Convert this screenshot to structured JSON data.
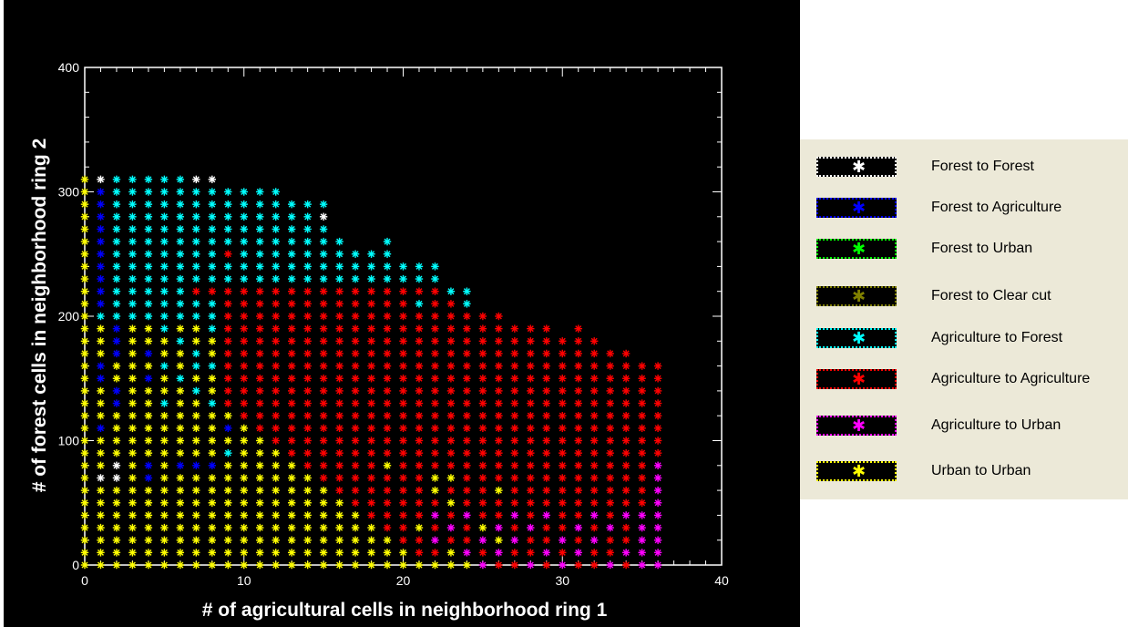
{
  "chart_data": {
    "type": "scatter",
    "xlabel": "# of agricultural cells in neighborhood ring 1",
    "ylabel": "# of forest cells in neighborhood ring 2",
    "xlim": [
      0,
      40
    ],
    "ylim": [
      0,
      400
    ],
    "xticks": [
      0,
      10,
      20,
      30,
      40
    ],
    "yticks": [
      0,
      100,
      200,
      300,
      400
    ],
    "grid": false,
    "legend_position": "right",
    "plot_background": "#000000",
    "marker": "asterisk",
    "series": [
      {
        "name": "Forest to Forest",
        "color": "#ffffff",
        "points": [
          [
            1,
            310
          ],
          [
            7,
            310
          ],
          [
            8,
            310
          ],
          [
            15,
            280
          ],
          [
            1,
            70
          ],
          [
            2,
            70
          ],
          [
            2,
            80
          ]
        ]
      },
      {
        "name": "Forest to Agriculture",
        "color": "#0000ff",
        "points": [
          [
            1,
            300
          ],
          [
            1,
            290
          ],
          [
            1,
            280
          ],
          [
            1,
            270
          ],
          [
            1,
            260
          ],
          [
            1,
            250
          ],
          [
            1,
            240
          ],
          [
            1,
            230
          ],
          [
            1,
            220
          ],
          [
            1,
            210
          ],
          [
            2,
            190
          ],
          [
            2,
            180
          ],
          [
            2,
            170
          ],
          [
            1,
            160
          ],
          [
            1,
            150
          ],
          [
            2,
            140
          ],
          [
            2,
            130
          ],
          [
            1,
            110
          ],
          [
            4,
            170
          ],
          [
            4,
            150
          ],
          [
            9,
            110
          ],
          [
            4,
            80
          ],
          [
            6,
            80
          ],
          [
            7,
            80
          ],
          [
            8,
            80
          ],
          [
            4,
            70
          ]
        ]
      },
      {
        "name": "Forest to Urban",
        "color": "#00ff00",
        "points": []
      },
      {
        "name": "Forest to Clear cut",
        "color": "#808000",
        "points": []
      },
      {
        "name": "Agriculture to Forest",
        "color": "#00ffff",
        "points": [
          [
            9,
            90
          ],
          [
            21,
            210
          ],
          [
            24,
            210
          ],
          [
            19,
            260
          ],
          [
            5,
            160
          ],
          [
            7,
            160
          ]
        ]
      },
      {
        "name": "Agriculture to Agriculture",
        "color": "#ff0000",
        "points": [
          [
            9,
            250
          ]
        ]
      },
      {
        "name": "Agriculture to Urban",
        "color": "#ff00ff",
        "points": []
      },
      {
        "name": "Urban to Urban",
        "color": "#ffff00",
        "points": [
          [
            22,
            70
          ],
          [
            23,
            70
          ],
          [
            19,
            80
          ]
        ]
      }
    ]
  },
  "legend": {
    "items": [
      {
        "label": "Forest to Forest",
        "color": "#ffffff"
      },
      {
        "label": "Forest to Agriculture",
        "color": "#0000ff"
      },
      {
        "label": "Forest to Urban",
        "color": "#00ff00"
      },
      {
        "label": "Forest to Clear cut",
        "color": "#808000"
      },
      {
        "label": "Agriculture to Forest",
        "color": "#00ffff"
      },
      {
        "label": "Agriculture to Agriculture",
        "color": "#ff0000"
      },
      {
        "label": "Agriculture to Urban",
        "color": "#ff00ff"
      },
      {
        "label": "Urban to Urban",
        "color": "#ffff00"
      }
    ]
  }
}
